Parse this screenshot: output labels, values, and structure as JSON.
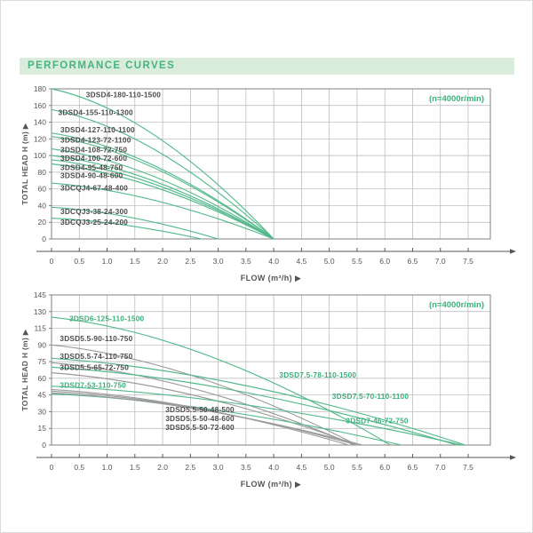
{
  "header": {
    "title": "PERFORMANCE CURVES"
  },
  "colors": {
    "header_bg": "#daecdb",
    "header_text": "#46b381",
    "curve_green": "#54b98c",
    "curve_gray": "#9a9a9a",
    "label_green": "#3bb07b",
    "label_dark": "#4c4c4c",
    "grid": "#b5b5b5",
    "border": "#828282",
    "axis_text": "#555555"
  },
  "chart_data": [
    {
      "type": "line",
      "title": "(n=4000r/min)",
      "xlabel": "FLOW (m³/h)",
      "ylabel": "TOTAL HEAD H (m)",
      "grid": true,
      "legend_position": "inline-labels",
      "xlim": [
        0,
        7.9
      ],
      "xticks": [
        "0",
        "0.5",
        "1.0",
        "1.5",
        "2.0",
        "2.5",
        "3.0",
        "3.5",
        "4.0",
        "4.5",
        "5.0",
        "5.5",
        "6.0",
        "6.5",
        "7.0",
        "7.5"
      ],
      "yticks": [
        180,
        160,
        140,
        120,
        100,
        80,
        60,
        40,
        20,
        0
      ],
      "series": [
        {
          "name": "3DSD4-180-110-1500",
          "color": "green",
          "label_color": "green_dark",
          "head_at_zero_flow": 180,
          "max_flow": 4.0,
          "points": [
            [
              0,
              180
            ],
            [
              4.0,
              0
            ]
          ],
          "label_pos": [
            0.62,
            173
          ]
        },
        {
          "name": "3DSD4-155-110-1300",
          "color": "green",
          "label_color": "dark",
          "head_at_zero_flow": 155,
          "max_flow": 4.0,
          "points": [
            [
              0,
              155
            ],
            [
              4.0,
              0
            ]
          ],
          "label_pos": [
            0.12,
            152
          ]
        },
        {
          "name": "3DSD4-127-110-1100",
          "color": "green",
          "label_color": "dark",
          "head_at_zero_flow": 127,
          "max_flow": 4.0,
          "points": [
            [
              0,
              127
            ],
            [
              4.0,
              0
            ]
          ],
          "label_pos": [
            0.16,
            131
          ]
        },
        {
          "name": "3DSD4-123-72-1100",
          "color": "green",
          "label_color": "dark",
          "head_at_zero_flow": 123,
          "max_flow": 4.0,
          "points": [
            [
              0,
              123
            ],
            [
              4.0,
              0
            ]
          ],
          "label_pos": [
            0.16,
            119
          ]
        },
        {
          "name": "3DSD4-108-72-750",
          "color": "green",
          "label_color": "dark",
          "head_at_zero_flow": 108,
          "max_flow": 4.0,
          "points": [
            [
              0,
              108
            ],
            [
              4.0,
              0
            ]
          ],
          "label_pos": [
            0.16,
            107
          ]
        },
        {
          "name": "3DSD4-100-72-600",
          "color": "green",
          "label_color": "dark",
          "head_at_zero_flow": 100,
          "max_flow": 4.0,
          "points": [
            [
              0,
              100
            ],
            [
              4.0,
              0
            ]
          ],
          "label_pos": [
            0.16,
            97
          ]
        },
        {
          "name": "3DSD4-95-48-750",
          "color": "green",
          "label_color": "dark",
          "head_at_zero_flow": 95,
          "max_flow": 4.0,
          "points": [
            [
              0,
              95
            ],
            [
              4.0,
              0
            ]
          ],
          "label_pos": [
            0.16,
            86
          ]
        },
        {
          "name": "3DSD4-90-48-600",
          "color": "green",
          "label_color": "dark",
          "head_at_zero_flow": 90,
          "max_flow": 4.0,
          "points": [
            [
              0,
              90
            ],
            [
              4.0,
              0
            ]
          ],
          "label_pos": [
            0.16,
            76
          ]
        },
        {
          "name": "3DCQJ4-67-48-400",
          "color": "green",
          "label_color": "dark",
          "head_at_zero_flow": 67,
          "max_flow": 4.0,
          "points": [
            [
              0,
              67
            ],
            [
              4.0,
              0
            ]
          ],
          "label_pos": [
            0.16,
            61
          ]
        },
        {
          "name": "3DCQJ3-38-24-300",
          "color": "green",
          "label_color": "dark",
          "head_at_zero_flow": 38,
          "max_flow": 3.0,
          "points": [
            [
              0,
              38
            ],
            [
              3.0,
              0
            ]
          ],
          "label_pos": [
            0.16,
            33
          ]
        },
        {
          "name": "3DCQJ3-25-24-200",
          "color": "green",
          "label_color": "dark",
          "head_at_zero_flow": 25,
          "max_flow": 2.7,
          "points": [
            [
              0,
              25
            ],
            [
              2.7,
              0
            ]
          ],
          "label_pos": [
            0.16,
            20
          ]
        }
      ]
    },
    {
      "type": "line",
      "title": "(n=4000r/min)",
      "xlabel": "FLOW (m³/h)",
      "ylabel": "TOTAL HEAD H (m)",
      "grid": true,
      "legend_position": "inline-labels",
      "xlim": [
        0,
        7.9
      ],
      "xticks": [
        "0",
        "0.5",
        "1.0",
        "1.5",
        "2.0",
        "2.5",
        "3.0",
        "3.5",
        "4.0",
        "4.5",
        "5.0",
        "5.5",
        "6.0",
        "6.5",
        "7.0",
        "7.5"
      ],
      "yticks": [
        145,
        130,
        115,
        90,
        75,
        60,
        45,
        30,
        15,
        0
      ],
      "series": [
        {
          "name": "3DSD6-125-110-1500",
          "color": "green",
          "label_color": "green",
          "head_at_zero_flow": 125,
          "max_flow": 6.1,
          "points": [
            [
              0,
              125
            ],
            [
              6.1,
              0
            ]
          ],
          "label_pos": [
            0.32,
            124
          ]
        },
        {
          "name": "3DSD5.5-90-110-750",
          "color": "gray",
          "label_color": "dark",
          "head_at_zero_flow": 90,
          "max_flow": 5.5,
          "points": [
            [
              0,
              90
            ],
            [
              5.5,
              0
            ]
          ],
          "label_pos": [
            0.15,
            100
          ]
        },
        {
          "name": "3DSD5.5-74-110-750",
          "color": "gray",
          "label_color": "dark",
          "head_at_zero_flow": 74,
          "max_flow": 5.45,
          "points": [
            [
              0,
              74
            ],
            [
              5.45,
              0
            ]
          ],
          "label_pos": [
            0.15,
            80
          ]
        },
        {
          "name": "3DSD5.5-65-72-750",
          "color": "gray",
          "label_color": "dark",
          "head_at_zero_flow": 65,
          "max_flow": 5.5,
          "points": [
            [
              0,
              65
            ],
            [
              5.5,
              0
            ]
          ],
          "label_pos": [
            0.15,
            70
          ]
        },
        {
          "name": "3DSD7-53-110-750",
          "color": "green",
          "label_color": "green",
          "head_at_zero_flow": 53,
          "max_flow": 7.4,
          "points": [
            [
              0,
              53
            ],
            [
              7.4,
              0
            ]
          ],
          "label_pos": [
            0.15,
            54
          ]
        },
        {
          "name": "3DSD7.5-78-110-1500",
          "color": "green",
          "label_color": "green",
          "head_at_zero_flow": 78,
          "max_flow": 7.45,
          "points": [
            [
              0,
              78
            ],
            [
              7.45,
              0
            ]
          ],
          "label_pos": [
            4.1,
            63
          ]
        },
        {
          "name": "3DSD7.5-70-110-1100",
          "color": "green",
          "label_color": "green",
          "head_at_zero_flow": 70,
          "max_flow": 7.3,
          "points": [
            [
              0,
              70
            ],
            [
              7.3,
              0
            ]
          ],
          "label_pos": [
            5.05,
            44
          ]
        },
        {
          "name": "3DSD7-46-72-750",
          "color": "green",
          "label_color": "green",
          "head_at_zero_flow": 46,
          "max_flow": 6.3,
          "points": [
            [
              0,
              46
            ],
            [
              6.3,
              0
            ]
          ],
          "label_pos": [
            5.3,
            22
          ]
        },
        {
          "name": "3DSD5.5-50-48-500",
          "color": "gray",
          "label_color": "dark",
          "head_at_zero_flow": 50,
          "max_flow": 5.35,
          "points": [
            [
              0,
              50
            ],
            [
              5.35,
              0
            ]
          ],
          "label_pos": [
            2.05,
            32
          ]
        },
        {
          "name": "3DSD5.5-50-48-600",
          "color": "gray",
          "label_color": "dark",
          "head_at_zero_flow": 48.5,
          "max_flow": 5.5,
          "points": [
            [
              0,
              48.5
            ],
            [
              5.5,
              0
            ]
          ],
          "label_pos": [
            2.05,
            24
          ]
        },
        {
          "name": "3DSD5.5-50-72-600",
          "color": "gray",
          "label_color": "dark",
          "head_at_zero_flow": 47,
          "max_flow": 5.6,
          "points": [
            [
              0,
              47
            ],
            [
              5.6,
              0
            ]
          ],
          "label_pos": [
            2.05,
            16
          ]
        }
      ]
    }
  ]
}
